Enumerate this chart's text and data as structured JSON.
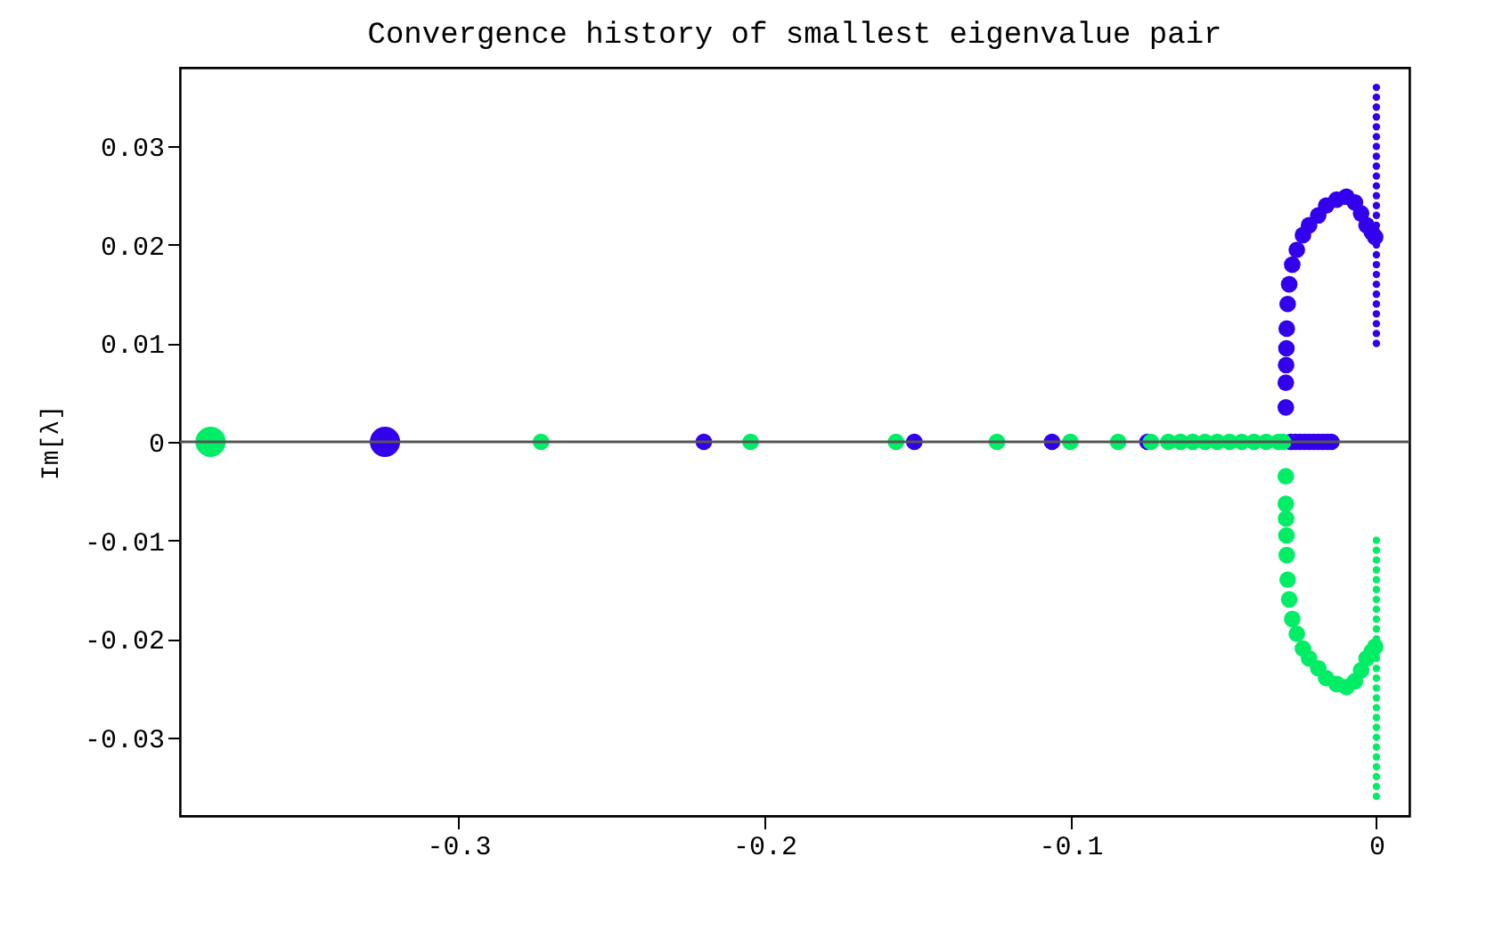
{
  "chart_data": {
    "type": "bubble",
    "title": "Convergence history of smallest eigenvalue pair",
    "ylabel": "Im[λ]",
    "xlim": [
      -0.391,
      0.0108
    ],
    "ylim": [
      -0.038,
      0.038
    ],
    "xticks": [
      -0.3,
      -0.2,
      -0.1,
      0
    ],
    "yticks": [
      -0.03,
      -0.02,
      -0.01,
      0,
      0.01,
      0.02,
      0.03
    ],
    "grid": false,
    "legend": false,
    "marker": "circle",
    "ref_lines": [
      {
        "axis": "y",
        "value": 0,
        "color": "#555555"
      }
    ],
    "series": [
      {
        "color": "#3300ee",
        "x": [
          -0.324,
          -0.2198,
          -0.151,
          -0.106,
          -0.0748,
          -0.028,
          -0.0265,
          -0.025,
          -0.0235,
          -0.022,
          -0.0205,
          -0.019,
          -0.0175,
          -0.016,
          -0.0147,
          -0.0296,
          -0.0296,
          -0.0295,
          -0.0294,
          -0.0293,
          -0.029,
          -0.0285,
          -0.0275,
          -0.026,
          -0.024,
          -0.022,
          -0.019,
          -0.0164,
          -0.013,
          -0.0098,
          -0.007,
          -0.005,
          -0.0032,
          -0.0015,
          -0.0004,
          0,
          0,
          0,
          0,
          0,
          0,
          0,
          0,
          0,
          0,
          0,
          0,
          0,
          0,
          0,
          0,
          0,
          0,
          0,
          0,
          0,
          0,
          0,
          0,
          0,
          0
        ],
        "values": [
          0,
          0,
          0,
          0,
          0,
          0,
          0,
          0,
          0,
          0,
          0,
          0,
          0,
          0,
          0,
          0.0035,
          0.006,
          0.0078,
          0.0095,
          0.0115,
          0.014,
          0.016,
          0.018,
          0.0195,
          0.021,
          0.022,
          0.023,
          0.024,
          0.0246,
          0.0249,
          0.0243,
          0.0232,
          0.022,
          0.0213,
          0.0208,
          0.01,
          0.011,
          0.012,
          0.013,
          0.014,
          0.015,
          0.016,
          0.017,
          0.018,
          0.019,
          0.02,
          0.022,
          0.023,
          0.024,
          0.025,
          0.026,
          0.027,
          0.028,
          0.029,
          0.03,
          0.031,
          0.032,
          0.033,
          0.034,
          0.035,
          0.036
        ],
        "sizes": [
          1,
          0.3,
          0.3,
          0.3,
          0.3,
          0.3,
          0.3,
          0.3,
          0.3,
          0.3,
          0.3,
          0.3,
          0.3,
          0.3,
          0.3,
          0.3,
          0.3,
          0.3,
          0.3,
          0.3,
          0.3,
          0.3,
          0.3,
          0.3,
          0.3,
          0.3,
          0.3,
          0.3,
          0.3,
          0.3,
          0.3,
          0.3,
          0.3,
          0.3,
          0.3,
          0.06,
          0.06,
          0.06,
          0.06,
          0.06,
          0.06,
          0.06,
          0.06,
          0.06,
          0.06,
          0.06,
          0.06,
          0.06,
          0.06,
          0.06,
          0.06,
          0.06,
          0.06,
          0.06,
          0.06,
          0.06,
          0.06,
          0.06,
          0.06,
          0.06,
          0.06
        ]
      },
      {
        "color": "#00ee66",
        "x": [
          -0.381,
          -0.273,
          -0.2045,
          -0.157,
          -0.124,
          -0.1,
          -0.0844,
          -0.0737,
          -0.068,
          -0.064,
          -0.06,
          -0.056,
          -0.052,
          -0.048,
          -0.044,
          -0.04,
          -0.036,
          -0.032,
          -0.0305,
          -0.0296,
          -0.0296,
          -0.0295,
          -0.0294,
          -0.0293,
          -0.029,
          -0.0285,
          -0.0275,
          -0.026,
          -0.024,
          -0.022,
          -0.019,
          -0.0164,
          -0.013,
          -0.0098,
          -0.007,
          -0.005,
          -0.0032,
          -0.0015,
          -0.0004,
          0,
          0,
          0,
          0,
          0,
          0,
          0,
          0,
          0,
          0,
          0,
          0,
          0,
          0,
          0,
          0,
          0,
          0,
          0,
          0,
          0,
          0,
          0,
          0,
          0,
          0
        ],
        "values": [
          0,
          0,
          0,
          0,
          0,
          0,
          0,
          0,
          0,
          0,
          0,
          0,
          0,
          0,
          0,
          0,
          0,
          0,
          0,
          -0.0035,
          -0.0063,
          -0.0078,
          -0.0095,
          -0.0115,
          -0.014,
          -0.016,
          -0.018,
          -0.0195,
          -0.021,
          -0.022,
          -0.023,
          -0.024,
          -0.0246,
          -0.0249,
          -0.0243,
          -0.0232,
          -0.022,
          -0.0213,
          -0.0208,
          -0.01,
          -0.011,
          -0.012,
          -0.013,
          -0.014,
          -0.015,
          -0.016,
          -0.017,
          -0.018,
          -0.019,
          -0.02,
          -0.022,
          -0.023,
          -0.024,
          -0.025,
          -0.026,
          -0.027,
          -0.028,
          -0.029,
          -0.03,
          -0.031,
          -0.032,
          -0.033,
          -0.034,
          -0.035,
          -0.036
        ],
        "sizes": [
          1,
          0.3,
          0.3,
          0.3,
          0.3,
          0.3,
          0.3,
          0.3,
          0.3,
          0.3,
          0.3,
          0.3,
          0.3,
          0.3,
          0.3,
          0.3,
          0.3,
          0.3,
          0.3,
          0.3,
          0.3,
          0.3,
          0.3,
          0.3,
          0.3,
          0.3,
          0.3,
          0.3,
          0.3,
          0.3,
          0.3,
          0.3,
          0.3,
          0.3,
          0.3,
          0.3,
          0.3,
          0.3,
          0.3,
          0.06,
          0.06,
          0.06,
          0.06,
          0.06,
          0.06,
          0.06,
          0.06,
          0.06,
          0.06,
          0.06,
          0.06,
          0.06,
          0.06,
          0.06,
          0.06,
          0.06,
          0.06,
          0.06,
          0.06,
          0.06,
          0.06,
          0.06,
          0.06,
          0.06,
          0.06
        ]
      }
    ]
  }
}
